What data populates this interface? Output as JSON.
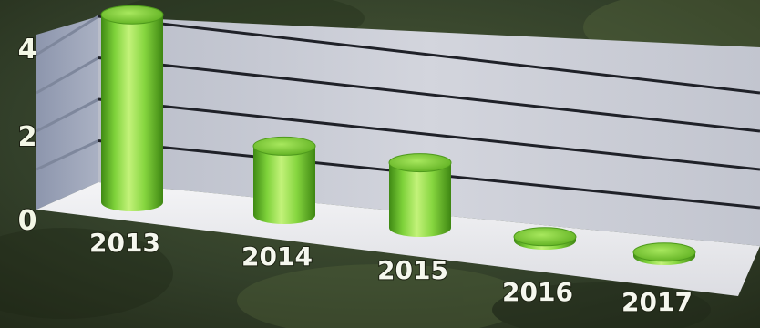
{
  "chart_data": {
    "type": "bar",
    "categories": [
      "2013",
      "2014",
      "2015",
      "2016",
      "2017"
    ],
    "values": [
      4.9,
      1.8,
      1.7,
      0.1,
      0.1
    ],
    "yticks": [
      "0",
      "2",
      "4"
    ],
    "ylim": [
      0,
      5
    ],
    "grid": true,
    "bar_color": "#7ed23a",
    "wall_color": "#c4c7d0"
  }
}
